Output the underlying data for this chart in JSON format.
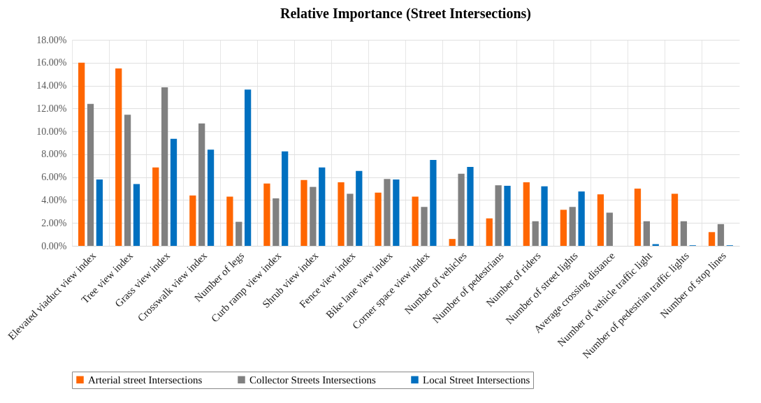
{
  "chart_data": {
    "type": "bar",
    "title": "Relative Importance (Street Intersections)",
    "categories": [
      "Elevated viaduct view index",
      "Tree view index",
      "Grass view index",
      "Crosswalk view index",
      "Number of legs",
      "Curb ramp view index",
      "Shrub view index",
      "Fence view index",
      "Bike lane view index",
      "Corner space view index",
      "Number of vehicles",
      "Number of pedestrians",
      "Number of riders",
      "Number of street lights",
      "Average crossing distance",
      "Number of vehicle traffic light",
      "Number of pedestrian traffic lights",
      "Number of stop lines"
    ],
    "series": [
      {
        "name": "Arterial street Intersections",
        "color": "#ff6600",
        "values": [
          16.0,
          15.5,
          6.85,
          4.4,
          4.3,
          5.45,
          5.75,
          5.55,
          4.65,
          4.3,
          0.6,
          2.4,
          5.55,
          3.15,
          4.5,
          5.0,
          4.55,
          1.2
        ]
      },
      {
        "name": "Collector Streets Intersections",
        "color": "#808080",
        "values": [
          12.4,
          11.45,
          13.85,
          10.7,
          2.1,
          4.15,
          5.15,
          4.55,
          5.85,
          3.4,
          6.3,
          5.3,
          2.15,
          3.4,
          2.9,
          2.15,
          2.15,
          1.9
        ]
      },
      {
        "name": "Local Street Intersections",
        "color": "#0070c0",
        "values": [
          5.8,
          5.4,
          9.35,
          8.4,
          13.65,
          8.25,
          6.85,
          6.55,
          5.8,
          7.5,
          6.9,
          5.25,
          5.2,
          4.75,
          null,
          0.15,
          0.05,
          0.05
        ]
      }
    ],
    "ylim": [
      0,
      18
    ],
    "yticks": [
      {
        "value": 0,
        "label": "0.00%"
      },
      {
        "value": 2,
        "label": "2.00%"
      },
      {
        "value": 4,
        "label": "4.00%"
      },
      {
        "value": 6,
        "label": "6.00%"
      },
      {
        "value": 8,
        "label": "8.00%"
      },
      {
        "value": 10,
        "label": "10.00%"
      },
      {
        "value": 12,
        "label": "12.00%"
      },
      {
        "value": 14,
        "label": "14.00%"
      },
      {
        "value": 16,
        "label": "16.00%"
      },
      {
        "value": 18,
        "label": "18.00%"
      }
    ],
    "grid": true,
    "legend": "bottom"
  }
}
